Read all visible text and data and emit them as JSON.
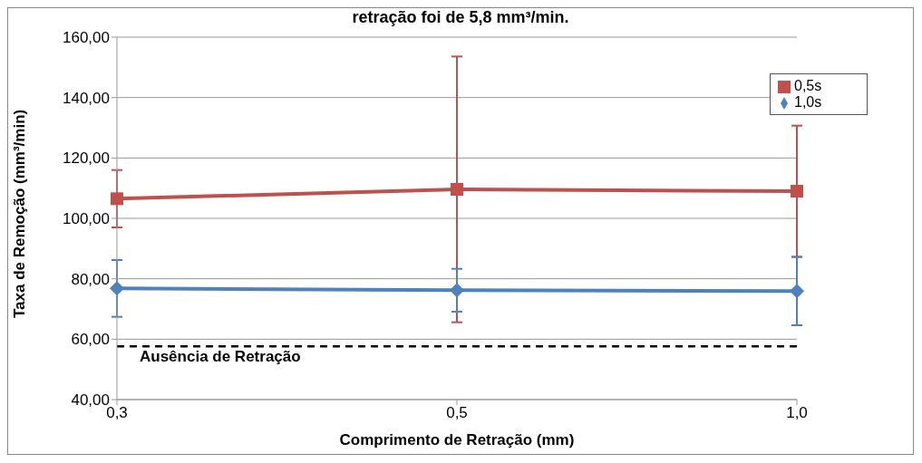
{
  "chart_data": {
    "type": "line",
    "title": "retração foi de 5,8 mm³/min.",
    "xlabel": "Comprimento de Retração (mm)",
    "ylabel": "Taxa de Remoção (mm³/min)",
    "categories": [
      "0,3",
      "0,5",
      "1,0"
    ],
    "series": [
      {
        "name": "0,5s",
        "color": "#c0504d",
        "marker": "square",
        "values": [
          106.5,
          109.6,
          109.0
        ],
        "errors": [
          9.5,
          44,
          21.7
        ]
      },
      {
        "name": "1,0s",
        "color": "#4f81bd",
        "marker": "diamond",
        "values": [
          76.8,
          76.2,
          75.9
        ],
        "errors": [
          9.4,
          7.1,
          11.3
        ]
      }
    ],
    "ylim": [
      40,
      160
    ],
    "yticks": [
      {
        "value": 40,
        "label": "40,00"
      },
      {
        "value": 60,
        "label": "60,00"
      },
      {
        "value": 80,
        "label": "80,00"
      },
      {
        "value": 100,
        "label": "100,00"
      },
      {
        "value": 120,
        "label": "120,00"
      },
      {
        "value": 140,
        "label": "140,00"
      },
      {
        "value": 160,
        "label": "160,00"
      }
    ],
    "ref_lines": [
      {
        "axis": "y",
        "value": 57.6,
        "label": "Ausência de Retração",
        "color": "#000000",
        "line_style": "dashed"
      }
    ],
    "grid": "y",
    "legend": "top right",
    "line_style": "solid"
  }
}
